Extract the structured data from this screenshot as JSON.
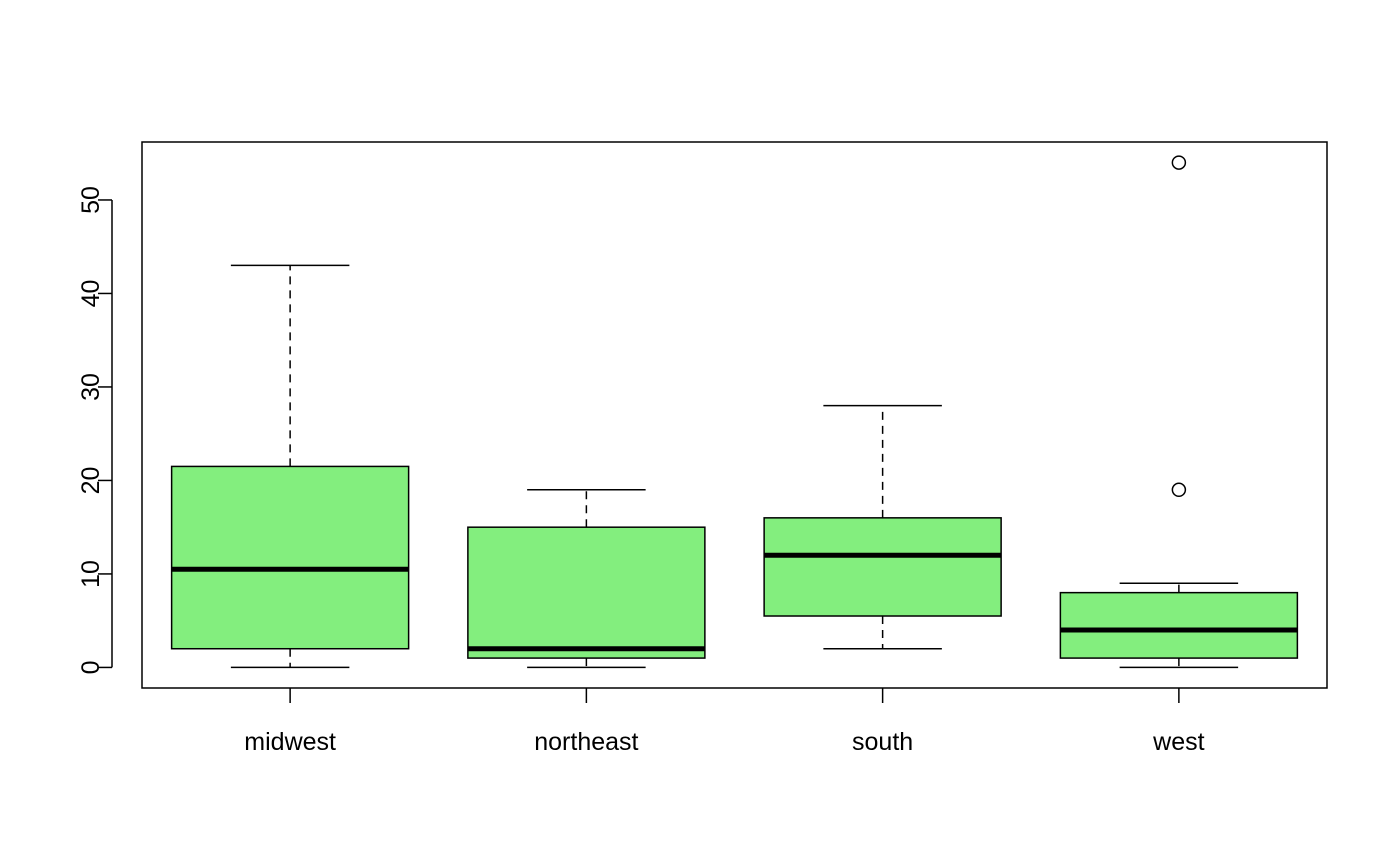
{
  "chart_data": {
    "type": "boxplot",
    "title": "",
    "xlabel": "",
    "ylabel": "",
    "ylim": [
      -2.2,
      56.2
    ],
    "yticks": [
      0,
      10,
      20,
      30,
      40,
      50
    ],
    "ytick_labels": [
      "0",
      "10",
      "20",
      "30",
      "40",
      "50"
    ],
    "categories": [
      "midwest",
      "northeast",
      "south",
      "west"
    ],
    "box_color": "#83ee7e",
    "line_color": "#000000",
    "boxes": [
      {
        "category": "midwest",
        "whisker_low": 0,
        "q1": 2,
        "median": 10.5,
        "q3": 21.5,
        "whisker_high": 43,
        "outliers": []
      },
      {
        "category": "northeast",
        "whisker_low": 0,
        "q1": 1,
        "median": 2,
        "q3": 15,
        "whisker_high": 19,
        "outliers": []
      },
      {
        "category": "south",
        "whisker_low": 2,
        "q1": 5.5,
        "median": 12,
        "q3": 16,
        "whisker_high": 28,
        "outliers": []
      },
      {
        "category": "west",
        "whisker_low": 0,
        "q1": 1,
        "median": 4,
        "q3": 8,
        "whisker_high": 9,
        "outliers": [
          19,
          54
        ]
      }
    ],
    "grid": false,
    "legend": "none"
  }
}
